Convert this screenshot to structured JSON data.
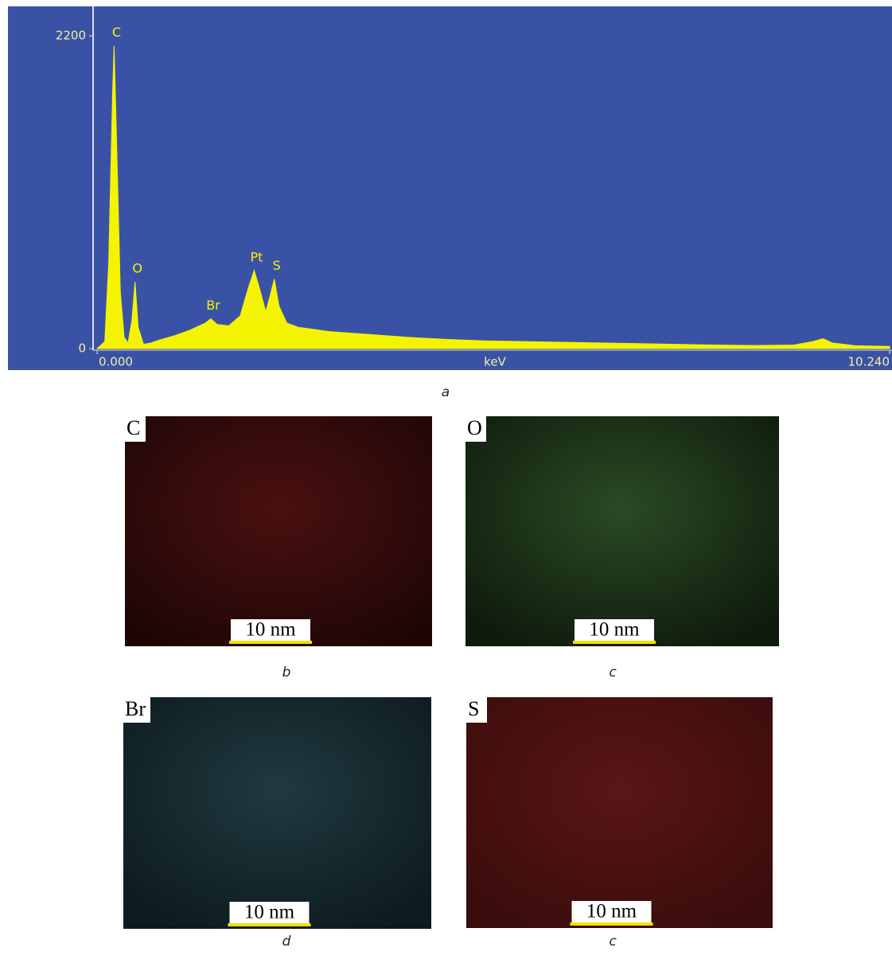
{
  "chart_data": {
    "type": "area",
    "x_label": "keV",
    "x": [
      0.0,
      0.1,
      0.15,
      0.2,
      0.22,
      0.25,
      0.3,
      0.35,
      0.4,
      0.45,
      0.49,
      0.53,
      0.6,
      0.7,
      0.8,
      1.0,
      1.2,
      1.4,
      1.47,
      1.55,
      1.7,
      1.85,
      1.95,
      2.03,
      2.1,
      2.18,
      2.24,
      2.29,
      2.35,
      2.45,
      2.6,
      3.0,
      3.5,
      4.0,
      4.5,
      5.0,
      5.5,
      6.0,
      6.5,
      7.0,
      7.5,
      8.0,
      8.5,
      9.0,
      9.25,
      9.38,
      9.5,
      9.8,
      10.24
    ],
    "values": [
      0,
      50,
      600,
      1800,
      2130,
      1500,
      400,
      80,
      40,
      200,
      470,
      150,
      30,
      40,
      60,
      90,
      130,
      180,
      210,
      170,
      160,
      230,
      420,
      550,
      420,
      260,
      380,
      490,
      300,
      180,
      150,
      120,
      100,
      80,
      65,
      55,
      50,
      45,
      40,
      35,
      30,
      25,
      22,
      25,
      50,
      70,
      40,
      20,
      15
    ],
    "color": "#f4f400",
    "xlim": [
      0,
      10.24
    ],
    "xticks": [
      {
        "value": 0,
        "label": "0.000"
      },
      {
        "value": 10.24,
        "label": "10.240"
      }
    ],
    "ylim": [
      0,
      2200
    ],
    "yticks": [
      0,
      2200
    ],
    "peaks": [
      {
        "label": "C",
        "x": 0.22
      },
      {
        "label": "O",
        "x": 0.49
      },
      {
        "label": "Br",
        "x": 1.47
      },
      {
        "label": "Pt",
        "x": 2.03
      },
      {
        "label": "S",
        "x": 2.29
      }
    ]
  },
  "caption": "a",
  "panels": [
    {
      "element": "C",
      "scale_bar": "10 nm",
      "caption": "b"
    },
    {
      "element": "O",
      "scale_bar": "10 nm",
      "caption": "c"
    },
    {
      "element": "Br",
      "scale_bar": "10 nm",
      "caption": "d"
    },
    {
      "element": "S",
      "scale_bar": "10 nm",
      "caption": "c"
    }
  ]
}
